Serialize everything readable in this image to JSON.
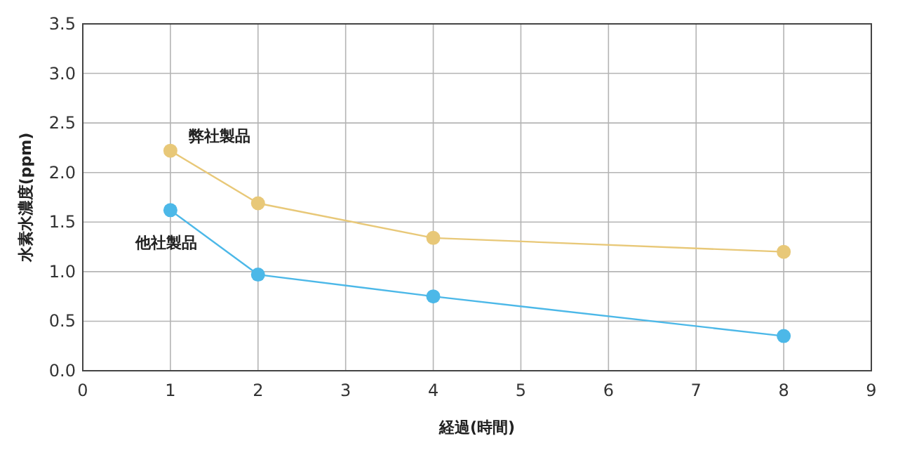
{
  "chart_data": {
    "type": "line",
    "xlabel": "経過(時間)",
    "ylabel": "水素水濃度(ppm)",
    "x": [
      1,
      2,
      4,
      8
    ],
    "series": [
      {
        "name": "弊社製品",
        "color": "#e8c878",
        "values": [
          2.22,
          1.69,
          1.34,
          1.2
        ]
      },
      {
        "name": "他社製品",
        "color": "#4cb8e8",
        "values": [
          1.62,
          0.97,
          0.75,
          0.35
        ]
      }
    ],
    "xlim": [
      0,
      9
    ],
    "xticks": [
      0,
      1,
      2,
      3,
      4,
      5,
      6,
      7,
      8,
      9
    ],
    "ylim": [
      0,
      3.5
    ],
    "yticks": [
      {
        "value": 0,
        "label": "0.0"
      },
      {
        "value": 0.5,
        "label": "0.5"
      },
      {
        "value": 1,
        "label": "1.0"
      },
      {
        "value": 1.5,
        "label": "1.5"
      },
      {
        "value": 2,
        "label": "2.0"
      },
      {
        "value": 2.5,
        "label": "2.5"
      },
      {
        "value": 3,
        "label": "3.0"
      },
      {
        "value": 3.5,
        "label": "3.5"
      }
    ],
    "grid": true,
    "marker": "circle"
  }
}
